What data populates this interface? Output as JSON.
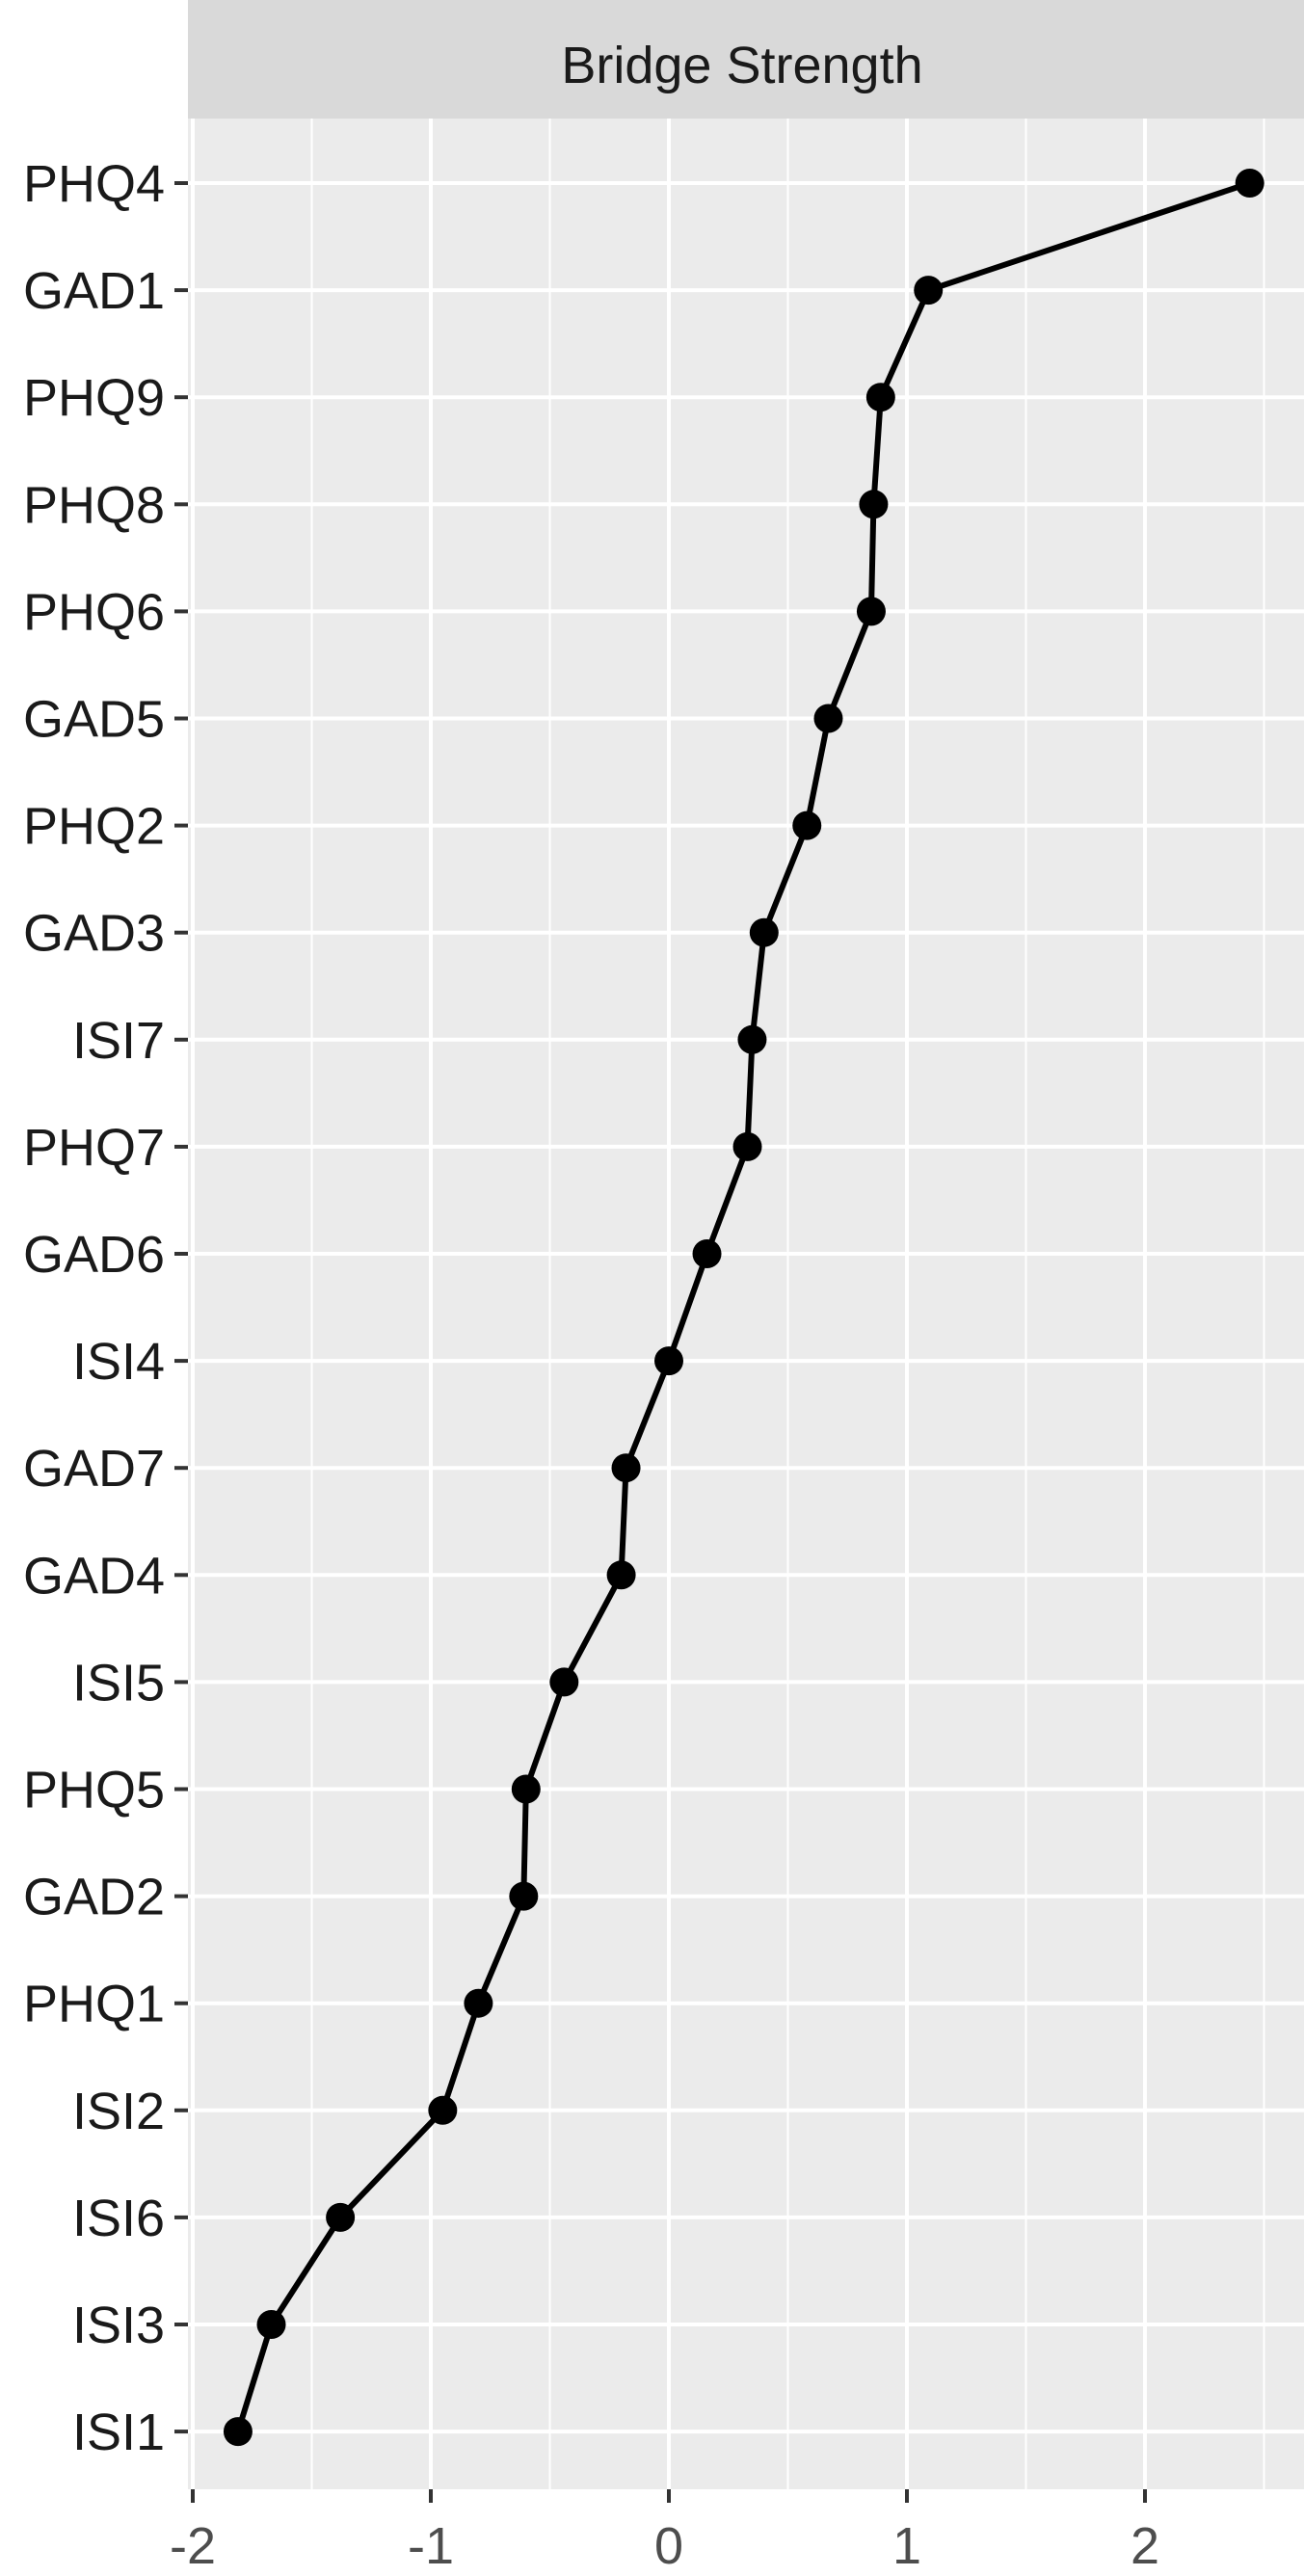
{
  "chart_data": {
    "type": "line",
    "title": "",
    "facet_label": "Bridge Strength",
    "xlabel": "",
    "ylabel": "",
    "xlim": [
      -2,
      2.6
    ],
    "x_ticks": [
      "-2",
      "-1",
      "0",
      "1",
      "2"
    ],
    "x_tick_values": [
      -2,
      -1,
      0,
      1,
      2
    ],
    "grid": true,
    "background": "#ebebeb",
    "strip_color": "#d9d9d9",
    "line_color": "#000000",
    "categories": [
      "PHQ4",
      "GAD1",
      "PHQ9",
      "PHQ8",
      "PHQ6",
      "GAD5",
      "PHQ2",
      "GAD3",
      "ISI7",
      "PHQ7",
      "GAD6",
      "ISI4",
      "GAD7",
      "GAD4",
      "ISI5",
      "PHQ5",
      "GAD2",
      "PHQ1",
      "ISI2",
      "ISI6",
      "ISI3",
      "ISI1"
    ],
    "series": [
      {
        "values": [
          2.44,
          1.09,
          0.89,
          0.86,
          0.85,
          0.67,
          0.58,
          0.4,
          0.35,
          0.33,
          0.16,
          0.0,
          -0.18,
          -0.2,
          -0.44,
          -0.6,
          -0.61,
          -0.8,
          -0.95,
          -1.38,
          -1.67,
          -1.81
        ]
      }
    ]
  }
}
